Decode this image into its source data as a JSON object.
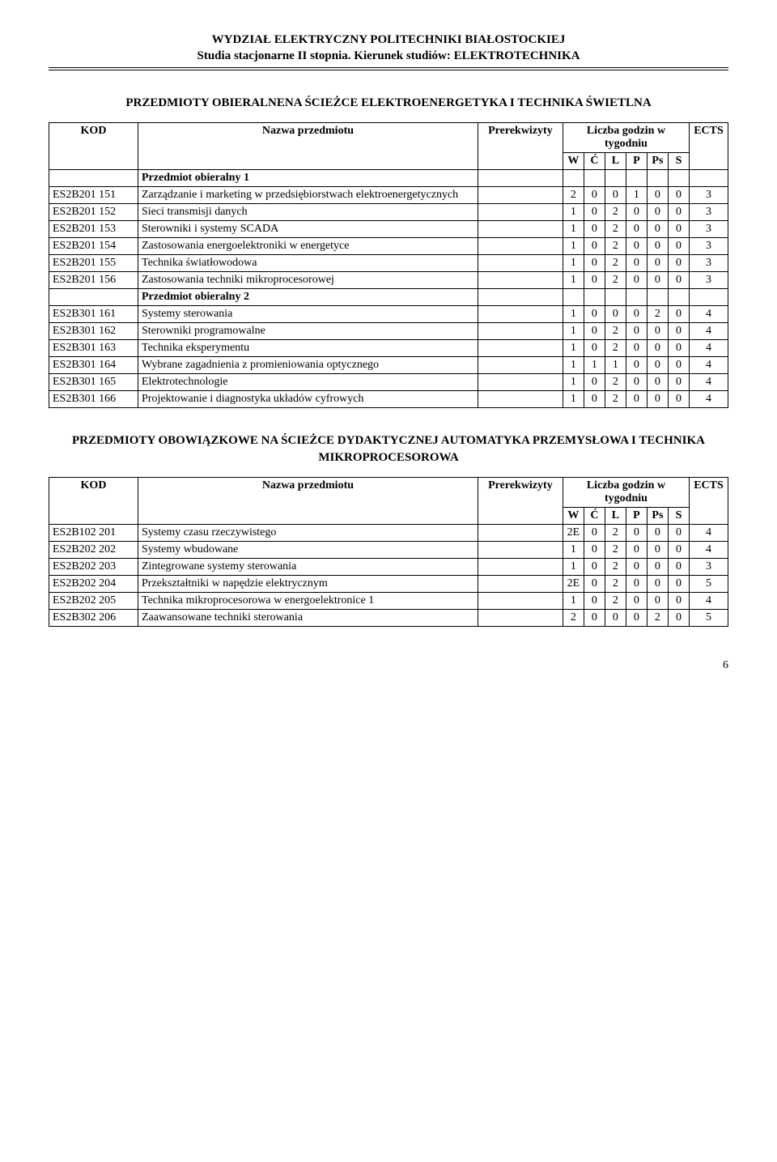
{
  "header": {
    "line1": "WYDZIAŁ ELEKTRYCZNY POLITECHNIKI BIAŁOSTOCKIEJ",
    "line2": "Studia stacjonarne II stopnia. Kierunek studiów: ELEKTROTECHNIKA"
  },
  "section1": {
    "title": "PRZEDMIOTY OBIERALNENA ŚCIEŻCE ELEKTROENERGETYKA I TECHNIKA ŚWIETLNA",
    "columns": {
      "kod": "KOD",
      "name": "Nazwa przedmiotu",
      "pre": "Prerekwizyty",
      "lg": "Liczba godzin w tygodniu",
      "ects": "ECTS",
      "w": "W",
      "c": "Ć",
      "l": "L",
      "p": "P",
      "ps": "Ps",
      "s": "S"
    },
    "group1_label": "Przedmiot obieralny 1",
    "group2_label": "Przedmiot obieralny 2",
    "rows": [
      {
        "kod": "ES2B201 151",
        "name": "Zarządzanie i marketing w przedsiębiorstwach elektroenergetycznych",
        "pre": "",
        "W": "2",
        "C": "0",
        "L": "0",
        "P": "1",
        "Ps": "0",
        "S": "0",
        "ects": "3"
      },
      {
        "kod": "ES2B201 152",
        "name": "Sieci transmisji danych",
        "pre": "",
        "W": "1",
        "C": "0",
        "L": "2",
        "P": "0",
        "Ps": "0",
        "S": "0",
        "ects": "3"
      },
      {
        "kod": "ES2B201 153",
        "name": "Sterowniki i systemy SCADA",
        "pre": "",
        "W": "1",
        "C": "0",
        "L": "2",
        "P": "0",
        "Ps": "0",
        "S": "0",
        "ects": "3"
      },
      {
        "kod": "ES2B201 154",
        "name": "Zastosowania energoelektroniki w energetyce",
        "pre": "",
        "W": "1",
        "C": "0",
        "L": "2",
        "P": "0",
        "Ps": "0",
        "S": "0",
        "ects": "3"
      },
      {
        "kod": "ES2B201 155",
        "name": "Technika światłowodowa",
        "pre": "",
        "W": "1",
        "C": "0",
        "L": "2",
        "P": "0",
        "Ps": "0",
        "S": "0",
        "ects": "3"
      },
      {
        "kod": "ES2B201 156",
        "name": "Zastosowania techniki mikroprocesorowej",
        "pre": "",
        "W": "1",
        "C": "0",
        "L": "2",
        "P": "0",
        "Ps": "0",
        "S": "0",
        "ects": "3"
      }
    ],
    "rows2": [
      {
        "kod": "ES2B301 161",
        "name": "Systemy sterowania",
        "pre": "",
        "W": "1",
        "C": "0",
        "L": "0",
        "P": "0",
        "Ps": "2",
        "S": "0",
        "ects": "4"
      },
      {
        "kod": "ES2B301 162",
        "name": "Sterowniki programowalne",
        "pre": "",
        "W": "1",
        "C": "0",
        "L": "2",
        "P": "0",
        "Ps": "0",
        "S": "0",
        "ects": "4"
      },
      {
        "kod": "ES2B301 163",
        "name": "Technika eksperymentu",
        "pre": "",
        "W": "1",
        "C": "0",
        "L": "2",
        "P": "0",
        "Ps": "0",
        "S": "0",
        "ects": "4"
      },
      {
        "kod": "ES2B301 164",
        "name": "Wybrane zagadnienia z promieniowania optycznego",
        "pre": "",
        "W": "1",
        "C": "1",
        "L": "1",
        "P": "0",
        "Ps": "0",
        "S": "0",
        "ects": "4"
      },
      {
        "kod": "ES2B301 165",
        "name": "Elektrotechnologie",
        "pre": "",
        "W": "1",
        "C": "0",
        "L": "2",
        "P": "0",
        "Ps": "0",
        "S": "0",
        "ects": "4"
      },
      {
        "kod": "ES2B301 166",
        "name": "Projektowanie i diagnostyka układów cyfrowych",
        "pre": "",
        "W": "1",
        "C": "0",
        "L": "2",
        "P": "0",
        "Ps": "0",
        "S": "0",
        "ects": "4"
      }
    ]
  },
  "section2": {
    "title": "PRZEDMIOTY OBOWIĄZKOWE NA ŚCIEŻCE DYDAKTYCZNEJ AUTOMATYKA PRZEMYSŁOWA I TECHNIKA MIKROPROCESOROWA",
    "columns": {
      "kod": "KOD",
      "name": "Nazwa przedmiotu",
      "pre": "Prerekwizyty",
      "lg": "Liczba godzin w tygodniu",
      "ects": "ECTS",
      "w": "W",
      "c": "Ć",
      "l": "L",
      "p": "P",
      "ps": "Ps",
      "s": "S"
    },
    "rows": [
      {
        "kod": "ES2B102 201",
        "name": "Systemy czasu rzeczywistego",
        "pre": "",
        "W": "2E",
        "C": "0",
        "L": "2",
        "P": "0",
        "Ps": "0",
        "S": "0",
        "ects": "4"
      },
      {
        "kod": "ES2B202 202",
        "name": "Systemy wbudowane",
        "pre": "",
        "W": "1",
        "C": "0",
        "L": "2",
        "P": "0",
        "Ps": "0",
        "S": "0",
        "ects": "4"
      },
      {
        "kod": "ES2B202 203",
        "name": "Zintegrowane systemy sterowania",
        "pre": "",
        "W": "1",
        "C": "0",
        "L": "2",
        "P": "0",
        "Ps": "0",
        "S": "0",
        "ects": "3"
      },
      {
        "kod": "ES2B202 204",
        "name": "Przekształtniki w napędzie elektrycznym",
        "pre": "",
        "W": "2E",
        "C": "0",
        "L": "2",
        "P": "0",
        "Ps": "0",
        "S": "0",
        "ects": "5"
      },
      {
        "kod": "ES2B202 205",
        "name": "Technika mikroprocesorowa w energoelektronice 1",
        "pre": "",
        "W": "1",
        "C": "0",
        "L": "2",
        "P": "0",
        "Ps": "0",
        "S": "0",
        "ects": "4"
      },
      {
        "kod": "ES2B302 206",
        "name": "Zaawansowane techniki sterowania",
        "pre": "",
        "W": "2",
        "C": "0",
        "L": "0",
        "P": "0",
        "Ps": "2",
        "S": "0",
        "ects": "5"
      }
    ]
  },
  "pageNumber": "6"
}
